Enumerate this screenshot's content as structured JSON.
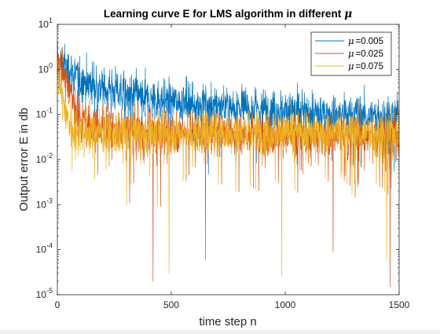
{
  "chart_data": {
    "type": "line",
    "title": "Learning curve E for LMS algorithm in different",
    "title_symbol": "μ",
    "xlabel": "time step n",
    "ylabel": "Output error E in db",
    "xlim": [
      0,
      1500
    ],
    "ylim": [
      1e-05,
      10
    ],
    "yscale": "log",
    "x_ticks": [
      0,
      500,
      1000,
      1500
    ],
    "x_tick_labels": [
      "0",
      "500",
      "1000",
      "1500"
    ],
    "y_ticks": [
      1e-05,
      0.0001,
      0.001,
      0.01,
      0.1,
      1,
      10
    ],
    "y_tick_bases": [
      "10",
      "10",
      "10",
      "10",
      "10",
      "10",
      "10"
    ],
    "y_tick_exponents": [
      "-5",
      "-4",
      "-3",
      "-2",
      "-1",
      "0",
      "1"
    ],
    "grid": false,
    "legend_position": "top-right",
    "series": [
      {
        "name": "=0.005",
        "symbol": "μ",
        "color": "#0072BD",
        "x": [
          0,
          50,
          100,
          200,
          300,
          400,
          500,
          600,
          700,
          800,
          900,
          1000,
          1100,
          1200,
          1300,
          1400,
          1500
        ],
        "values": [
          1.5,
          1.0,
          0.6,
          0.4,
          0.3,
          0.22,
          0.2,
          0.18,
          0.16,
          0.15,
          0.13,
          0.12,
          0.11,
          0.1,
          0.1,
          0.09,
          0.08
        ]
      },
      {
        "name": "=0.025",
        "symbol": "μ",
        "color": "#D95319",
        "x": [
          0,
          25,
          50,
          75,
          100,
          150,
          200,
          300,
          400,
          500,
          700,
          1000,
          1300,
          1500
        ],
        "values": [
          2.0,
          0.9,
          0.4,
          0.2,
          0.1,
          0.06,
          0.05,
          0.045,
          0.04,
          0.04,
          0.04,
          0.035,
          0.035,
          0.035
        ]
      },
      {
        "name": "=0.075",
        "symbol": "μ",
        "color": "#EDB120",
        "x": [
          0,
          15,
          30,
          50,
          75,
          100,
          200,
          400,
          700,
          1000,
          1300,
          1500
        ],
        "values": [
          1.0,
          0.4,
          0.15,
          0.07,
          0.05,
          0.045,
          0.04,
          0.04,
          0.04,
          0.04,
          0.04,
          0.04
        ]
      }
    ],
    "notable_minima": [
      {
        "series": 1,
        "x": 420,
        "y": 2e-05
      },
      {
        "series": 1,
        "x": 1460,
        "y": 1.5e-05
      },
      {
        "series": 1,
        "x": 650,
        "y": 6e-05
      },
      {
        "series": 1,
        "x": 1210,
        "y": 9e-05
      },
      {
        "series": 2,
        "x": 985,
        "y": 2.7e-05
      },
      {
        "series": 2,
        "x": 1445,
        "y": 6e-05
      },
      {
        "series": 2,
        "x": 490,
        "y": 3e-05
      }
    ]
  }
}
